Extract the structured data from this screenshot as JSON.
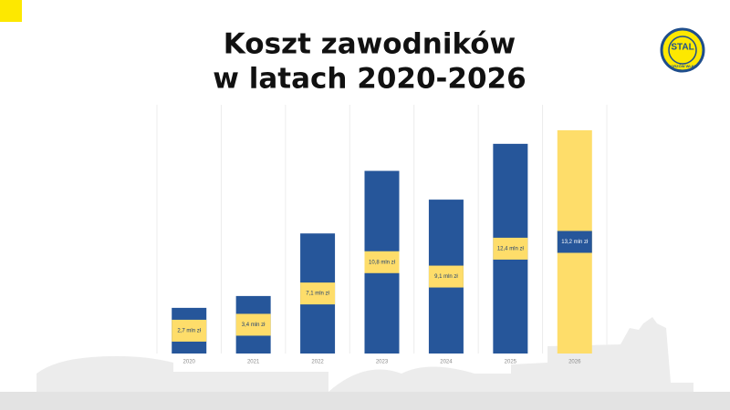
{
  "chart_data": {
    "type": "bar",
    "title": [
      "Koszt zawodników",
      "w latach 2020-2026"
    ],
    "logo": {
      "top": "STAL",
      "bottom": "GORZÓW WLKP."
    },
    "categories": [
      "2020",
      "2021",
      "2022",
      "2023",
      "2024",
      "2025",
      "2026"
    ],
    "values": [
      2.7,
      3.4,
      7.1,
      10.8,
      9.1,
      12.4,
      13.2
    ],
    "value_labels": [
      "2,7 mln zł",
      "3,4 mln zł",
      "7,1 mln zł",
      "10,8 mln zł",
      "9,1 mln zł",
      "12,4 mln zł",
      "13,2 mln zł"
    ],
    "colors": [
      "#26569a",
      "#26569a",
      "#26569a",
      "#26569a",
      "#26569a",
      "#26569a",
      "#fedd6a"
    ],
    "label_box_colors": [
      "#fedd6a",
      "#fedd6a",
      "#fedd6a",
      "#fedd6a",
      "#fedd6a",
      "#fedd6a",
      "#26569a"
    ],
    "grid": true
  }
}
